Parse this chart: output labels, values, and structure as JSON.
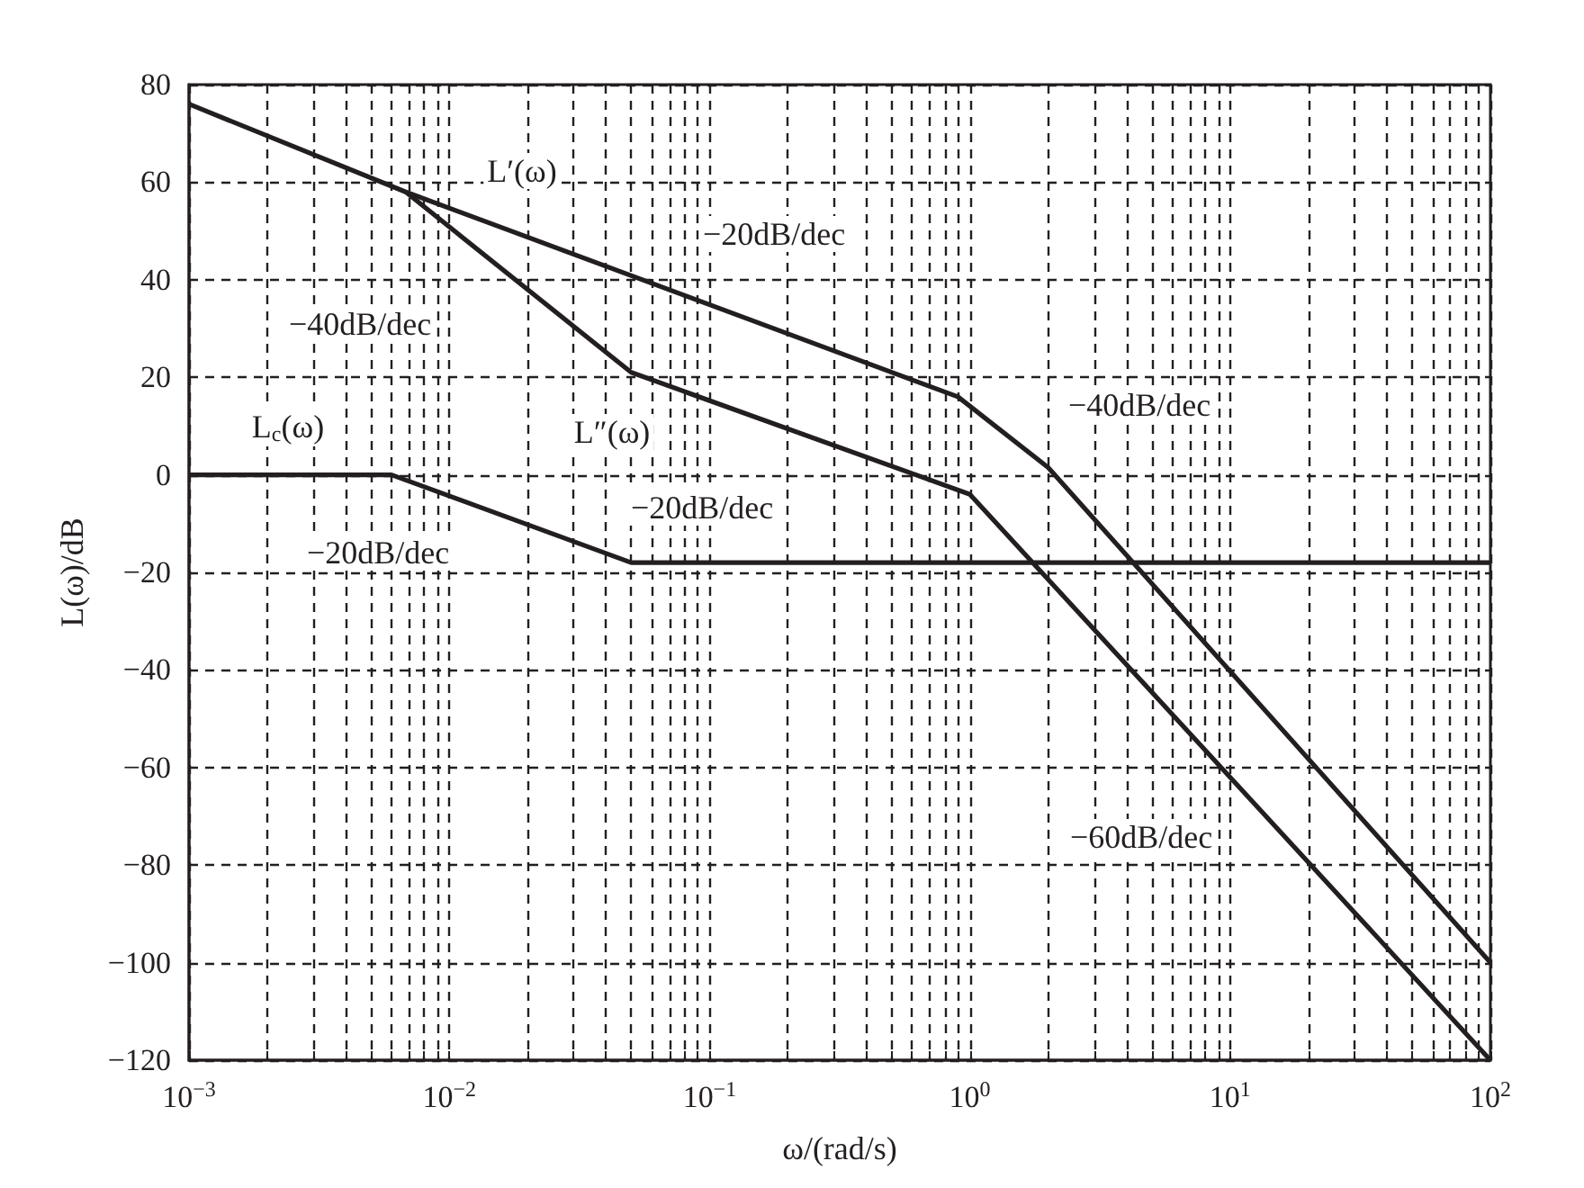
{
  "chart_data": {
    "type": "line",
    "xlabel": "ω/(rad/s)",
    "ylabel": "L(ω)/dB",
    "log": "x",
    "grid": true,
    "marker": "none",
    "line_style": "solid",
    "xlim": [
      0.001,
      100
    ],
    "ylim": [
      -120,
      80
    ],
    "xticks": [
      {
        "value": 0.001,
        "label": "10$^{−3}$"
      },
      {
        "value": 0.002,
        "label": null
      },
      {
        "value": 0.003,
        "label": null
      },
      {
        "value": 0.004,
        "label": null
      },
      {
        "value": 0.005,
        "label": null
      },
      {
        "value": 0.006,
        "label": null
      },
      {
        "value": 0.007,
        "label": null
      },
      {
        "value": 0.008,
        "label": null
      },
      {
        "value": 0.009,
        "label": null
      },
      {
        "value": 0.01,
        "label": "10$^{−2}$"
      },
      {
        "value": 0.02,
        "label": null
      },
      {
        "value": 0.03,
        "label": null
      },
      {
        "value": 0.04,
        "label": null
      },
      {
        "value": 0.05,
        "label": null
      },
      {
        "value": 0.06,
        "label": null
      },
      {
        "value": 0.07,
        "label": null
      },
      {
        "value": 0.08,
        "label": null
      },
      {
        "value": 0.09,
        "label": null
      },
      {
        "value": 0.1,
        "label": "10$^{−1}$"
      },
      {
        "value": 0.2,
        "label": null
      },
      {
        "value": 0.3,
        "label": null
      },
      {
        "value": 0.4,
        "label": null
      },
      {
        "value": 0.5,
        "label": null
      },
      {
        "value": 0.6,
        "label": null
      },
      {
        "value": 0.7,
        "label": null
      },
      {
        "value": 0.8,
        "label": null
      },
      {
        "value": 0.9,
        "label": null
      },
      {
        "value": 1,
        "label": "10$^{0}$"
      },
      {
        "value": 2,
        "label": null
      },
      {
        "value": 3,
        "label": null
      },
      {
        "value": 4,
        "label": null
      },
      {
        "value": 5,
        "label": null
      },
      {
        "value": 6,
        "label": null
      },
      {
        "value": 7,
        "label": null
      },
      {
        "value": 8,
        "label": null
      },
      {
        "value": 9,
        "label": null
      },
      {
        "value": 10,
        "label": "10$^{1}$"
      },
      {
        "value": 20,
        "label": null
      },
      {
        "value": 30,
        "label": null
      },
      {
        "value": 40,
        "label": null
      },
      {
        "value": 50,
        "label": null
      },
      {
        "value": 60,
        "label": null
      },
      {
        "value": 70,
        "label": null
      },
      {
        "value": 80,
        "label": null
      },
      {
        "value": 90,
        "label": null
      },
      {
        "value": 100,
        "label": "10$^{2}$"
      }
    ],
    "yticks": [
      {
        "value": -120,
        "label": "−120"
      },
      {
        "value": -100,
        "label": "−100"
      },
      {
        "value": -80,
        "label": "−80"
      },
      {
        "value": -60,
        "label": "−60"
      },
      {
        "value": -40,
        "label": "−40"
      },
      {
        "value": -20,
        "label": "−20"
      },
      0,
      20,
      40,
      60,
      80
    ],
    "series": [
      {
        "name": "L′(ω)",
        "color": "#231f20",
        "x": [
          0.001,
          0.0068,
          0.9,
          2,
          100
        ],
        "values": [
          76,
          58,
          16,
          1.5,
          -100
        ]
      },
      {
        "name": "L″(ω)",
        "color": "#231f20",
        "x": [
          0.0068,
          0.05,
          1,
          100
        ],
        "values": [
          58,
          21,
          -4,
          -120
        ]
      },
      {
        "name": "L$_{c}$(ω)",
        "color": "#231f20",
        "x": [
          0.001,
          0.006,
          0.05,
          100
        ],
        "values": [
          0,
          0,
          -18,
          -18
        ]
      }
    ],
    "annotations": [
      "−40dB/dec",
      "−20dB/dec",
      "−40dB/dec",
      "−20dB/dec",
      "−20dB/dec",
      "−60dB/dec"
    ]
  }
}
